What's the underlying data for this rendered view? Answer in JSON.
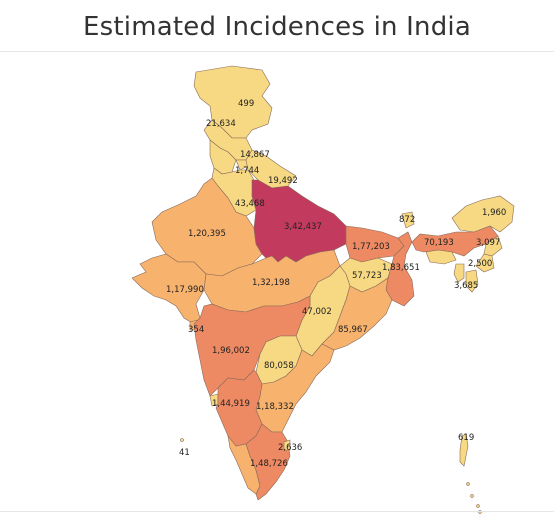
{
  "title": "Estimated Incidences in India",
  "colors": {
    "very_low": "#f6d982",
    "low": "#f7b26d",
    "mid": "#f29a64",
    "high": "#ee8a63",
    "very_high": "#c23b5e"
  },
  "labels": {
    "jk": "499",
    "himachal": "21,634",
    "punjab": "14,867",
    "chandigarh": "1,744",
    "uttarakhand": "19,492",
    "haryana": "43,468",
    "up": "3,42,437",
    "rajasthan": "1,20,395",
    "sikkim": "872",
    "arunachal": "1,960",
    "bihar": "1,77,203",
    "assam": "70,193",
    "meghalaya": "3,097",
    "manipur": "2,500",
    "mizoram": "3,685",
    "westbengal": "1,83,651",
    "jharkhand": "57,723",
    "mp": "1,32,198",
    "gujarat": "1,17,990",
    "chhattisgarh": "47,002",
    "odisha": "85,967",
    "daman": "354",
    "maharashtra": "1,96,002",
    "telangana": "80,058",
    "karnataka": "1,44,919",
    "andhra": "1,18,332",
    "lakshadweep": "41",
    "puducherry": "2,636",
    "tamilnadu": "1,48,726",
    "andaman": "619"
  }
}
